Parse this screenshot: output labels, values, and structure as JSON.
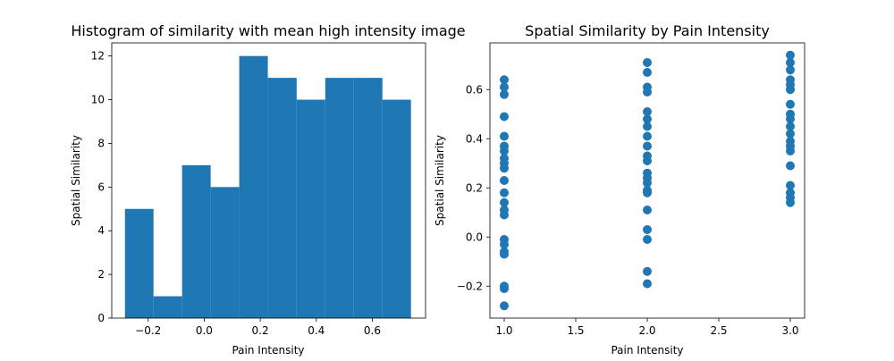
{
  "colors": {
    "series": "#1f77b4",
    "axes": "#000000",
    "background": "#ffffff"
  },
  "chart_data": [
    {
      "type": "bar",
      "subtype": "histogram",
      "title": "Histogram of similarity with mean high intensity image",
      "xlabel": "Pain Intensity",
      "ylabel": "Spatial Similarity",
      "xlim": [
        -0.33,
        0.79
      ],
      "ylim": [
        0,
        12.6
      ],
      "xticks": [
        -0.2,
        0.0,
        0.2,
        0.4,
        0.6
      ],
      "xtick_labels": [
        "−0.2",
        "0.0",
        "0.2",
        "0.4",
        "0.6"
      ],
      "yticks": [
        0,
        2,
        4,
        6,
        8,
        10,
        12
      ],
      "ytick_labels": [
        "0",
        "2",
        "4",
        "6",
        "8",
        "10",
        "12"
      ],
      "bins": [
        {
          "x0": -0.283,
          "x1": -0.181,
          "count": 5
        },
        {
          "x0": -0.181,
          "x1": -0.079,
          "count": 1
        },
        {
          "x0": -0.079,
          "x1": 0.023,
          "count": 7
        },
        {
          "x0": 0.023,
          "x1": 0.125,
          "count": 6
        },
        {
          "x0": 0.125,
          "x1": 0.227,
          "count": 12
        },
        {
          "x0": 0.227,
          "x1": 0.33,
          "count": 11
        },
        {
          "x0": 0.33,
          "x1": 0.432,
          "count": 10
        },
        {
          "x0": 0.432,
          "x1": 0.534,
          "count": 11
        },
        {
          "x0": 0.534,
          "x1": 0.636,
          "count": 11
        },
        {
          "x0": 0.636,
          "x1": 0.738,
          "count": 10
        }
      ],
      "grid": false,
      "legend": "none"
    },
    {
      "type": "scatter",
      "title": "Spatial Similarity by Pain Intensity",
      "xlabel": "Pain Intensity",
      "ylabel": "Spatial Similarity",
      "xlim": [
        0.9,
        3.1
      ],
      "ylim": [
        -0.33,
        0.79
      ],
      "xticks": [
        1.0,
        1.5,
        2.0,
        2.5,
        3.0
      ],
      "xtick_labels": [
        "1.0",
        "1.5",
        "2.0",
        "2.5",
        "3.0"
      ],
      "yticks": [
        -0.2,
        0.0,
        0.2,
        0.4,
        0.6
      ],
      "ytick_labels": [
        "−0.2",
        "0.0",
        "0.2",
        "0.4",
        "0.6"
      ],
      "points": [
        {
          "x": 1,
          "y": 0.64
        },
        {
          "x": 1,
          "y": 0.61
        },
        {
          "x": 1,
          "y": 0.58
        },
        {
          "x": 1,
          "y": 0.49
        },
        {
          "x": 1,
          "y": 0.41
        },
        {
          "x": 1,
          "y": 0.37
        },
        {
          "x": 1,
          "y": 0.35
        },
        {
          "x": 1,
          "y": 0.32
        },
        {
          "x": 1,
          "y": 0.3
        },
        {
          "x": 1,
          "y": 0.28
        },
        {
          "x": 1,
          "y": 0.23
        },
        {
          "x": 1,
          "y": 0.18
        },
        {
          "x": 1,
          "y": 0.14
        },
        {
          "x": 1,
          "y": 0.11
        },
        {
          "x": 1,
          "y": 0.09
        },
        {
          "x": 1,
          "y": -0.01
        },
        {
          "x": 1,
          "y": -0.03
        },
        {
          "x": 1,
          "y": -0.06
        },
        {
          "x": 1,
          "y": -0.07
        },
        {
          "x": 1,
          "y": -0.2
        },
        {
          "x": 1,
          "y": -0.21
        },
        {
          "x": 1,
          "y": -0.28
        },
        {
          "x": 2,
          "y": 0.71
        },
        {
          "x": 2,
          "y": 0.67
        },
        {
          "x": 2,
          "y": 0.61
        },
        {
          "x": 2,
          "y": 0.59
        },
        {
          "x": 2,
          "y": 0.51
        },
        {
          "x": 2,
          "y": 0.48
        },
        {
          "x": 2,
          "y": 0.45
        },
        {
          "x": 2,
          "y": 0.41
        },
        {
          "x": 2,
          "y": 0.37
        },
        {
          "x": 2,
          "y": 0.33
        },
        {
          "x": 2,
          "y": 0.31
        },
        {
          "x": 2,
          "y": 0.26
        },
        {
          "x": 2,
          "y": 0.24
        },
        {
          "x": 2,
          "y": 0.22
        },
        {
          "x": 2,
          "y": 0.19
        },
        {
          "x": 2,
          "y": 0.18
        },
        {
          "x": 2,
          "y": 0.11
        },
        {
          "x": 2,
          "y": 0.03
        },
        {
          "x": 2,
          "y": -0.01
        },
        {
          "x": 2,
          "y": -0.14
        },
        {
          "x": 2,
          "y": -0.19
        },
        {
          "x": 3,
          "y": 0.74
        },
        {
          "x": 3,
          "y": 0.71
        },
        {
          "x": 3,
          "y": 0.68
        },
        {
          "x": 3,
          "y": 0.64
        },
        {
          "x": 3,
          "y": 0.62
        },
        {
          "x": 3,
          "y": 0.6
        },
        {
          "x": 3,
          "y": 0.54
        },
        {
          "x": 3,
          "y": 0.5
        },
        {
          "x": 3,
          "y": 0.48
        },
        {
          "x": 3,
          "y": 0.45
        },
        {
          "x": 3,
          "y": 0.42
        },
        {
          "x": 3,
          "y": 0.39
        },
        {
          "x": 3,
          "y": 0.37
        },
        {
          "x": 3,
          "y": 0.35
        },
        {
          "x": 3,
          "y": 0.29
        },
        {
          "x": 3,
          "y": 0.21
        },
        {
          "x": 3,
          "y": 0.18
        },
        {
          "x": 3,
          "y": 0.16
        },
        {
          "x": 3,
          "y": 0.14
        }
      ],
      "grid": false,
      "legend": "none"
    }
  ]
}
